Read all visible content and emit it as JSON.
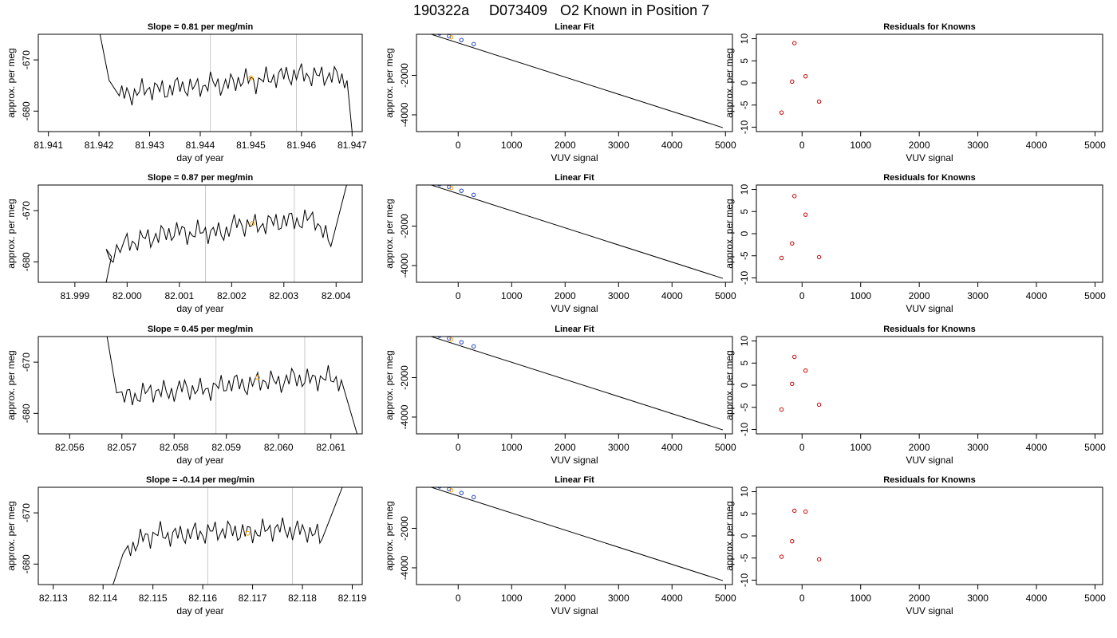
{
  "title": {
    "run": "190322a",
    "id": "D073409",
    "label": "O2 Known in Position  7"
  },
  "colors": {
    "trace": "#000000",
    "marker_highlight": "#ffa500",
    "residual_points": "#cc0000",
    "fit_points": "#1f3fbf",
    "cycle_lines": "#c8c8c8"
  },
  "chart_data": [
    {
      "type": "line",
      "row": 0,
      "title": "Slope =  0.81  per meg/min",
      "xlabel": "day of year",
      "ylabel": "approx. per meg",
      "xlim": [
        81.9408,
        81.9472
      ],
      "ylim": [
        -684,
        -665
      ],
      "xticks": [
        "81.941",
        "81.942",
        "81.943",
        "81.944",
        "81.945",
        "81.946",
        "81.947"
      ],
      "xtick_values": [
        81.941,
        81.942,
        81.943,
        81.944,
        81.945,
        81.946,
        81.947
      ],
      "yticks": [
        "-670",
        "-680"
      ],
      "ytick_values": [
        -670,
        -680
      ],
      "cycle_markers": [
        81.9442,
        81.9459
      ],
      "highlight_point": {
        "x": 81.945,
        "y": -673.5
      },
      "trace_x": [
        81.9424,
        81.9427,
        81.943,
        81.9433,
        81.9436,
        81.9439,
        81.9442,
        81.9445,
        81.9448,
        81.9451,
        81.9454,
        81.9457,
        81.946,
        81.9463,
        81.9466,
        81.9469
      ],
      "trace_y": [
        -677,
        -676.5,
        -675.5,
        -676,
        -675,
        -675.5,
        -674.5,
        -675,
        -673.8,
        -674.2,
        -673.5,
        -673,
        -672.8,
        -673.2,
        -673,
        -674
      ],
      "trace_start": {
        "x": 81.942,
        "y": -664,
        "end_x": 81.9422,
        "end_y": -674
      },
      "trace_end": {
        "x": 81.947,
        "y": -684
      }
    },
    {
      "type": "line",
      "row": 1,
      "title": "Slope =  0.87  per meg/min",
      "xlabel": "day of year",
      "ylabel": "approx. per meg",
      "xlim": [
        81.9983,
        82.0045
      ],
      "ylim": [
        -684,
        -665
      ],
      "xticks": [
        "81.999",
        "82.000",
        "82.001",
        "82.002",
        "82.003",
        "82.004"
      ],
      "xtick_values": [
        81.999,
        82.0,
        82.001,
        82.002,
        82.003,
        82.004
      ],
      "yticks": [
        "-670",
        "-680"
      ],
      "ytick_values": [
        -670,
        -680
      ],
      "cycle_markers": [
        82.0015,
        82.0032
      ],
      "highlight_point": {
        "x": 82.0024,
        "y": -672.5
      },
      "trace_x": [
        81.9996,
        82.0,
        82.0003,
        82.0006,
        82.0009,
        82.0012,
        82.0015,
        82.0018,
        82.0021,
        82.0024,
        82.0027,
        82.003,
        82.0033,
        82.0036,
        82.0039
      ],
      "trace_y": [
        -679,
        -676.5,
        -675.5,
        -675,
        -674,
        -674.5,
        -674,
        -674.5,
        -672.5,
        -673,
        -672.5,
        -672,
        -672,
        -671.5,
        -677
      ],
      "trace_start": {
        "x": 81.9996,
        "y": -684,
        "end_x": 81.9997,
        "end_y": -679
      },
      "trace_end": {
        "x": 82.0042,
        "y": -665
      }
    },
    {
      "type": "line",
      "row": 2,
      "title": "Slope =  0.45  per meg/min",
      "xlabel": "day of year",
      "ylabel": "approx. per meg",
      "xlim": [
        82.0554,
        82.0616
      ],
      "ylim": [
        -684,
        -665
      ],
      "xticks": [
        "82.056",
        "82.057",
        "82.058",
        "82.059",
        "82.060",
        "82.061"
      ],
      "xtick_values": [
        82.056,
        82.057,
        82.058,
        82.059,
        82.06,
        82.061
      ],
      "yticks": [
        "-670",
        "-680"
      ],
      "ytick_values": [
        -670,
        -680
      ],
      "cycle_markers": [
        82.0588,
        82.0605
      ],
      "highlight_point": {
        "x": 82.0596,
        "y": -673
      },
      "trace_x": [
        82.057,
        82.0573,
        82.0576,
        82.0579,
        82.0582,
        82.0585,
        82.0588,
        82.0591,
        82.0594,
        82.0597,
        82.06,
        82.0603,
        82.0606,
        82.0609,
        82.0612
      ],
      "trace_y": [
        -677,
        -676.5,
        -675.5,
        -676,
        -675,
        -675.5,
        -675,
        -674,
        -674.5,
        -673.5,
        -674,
        -673,
        -673.5,
        -673,
        -673.5
      ],
      "trace_start": {
        "x": 82.0567,
        "y": -664,
        "end_x": 82.0569,
        "end_y": -676
      },
      "trace_end": {
        "x": 82.0615,
        "y": -684
      }
    },
    {
      "type": "line",
      "row": 3,
      "title": "Slope =  -0.14  per meg/min",
      "xlabel": "day of year",
      "ylabel": "approx. per meg",
      "xlim": [
        82.1127,
        82.1192
      ],
      "ylim": [
        -684,
        -665
      ],
      "xticks": [
        "82.113",
        "82.114",
        "82.115",
        "82.116",
        "82.117",
        "82.118",
        "82.119"
      ],
      "xtick_values": [
        82.113,
        82.114,
        82.115,
        82.116,
        82.117,
        82.118,
        82.119
      ],
      "yticks": [
        "-670",
        "-680"
      ],
      "ytick_values": [
        -670,
        -680
      ],
      "cycle_markers": [
        82.1161,
        82.1178
      ],
      "highlight_point": {
        "x": 82.1169,
        "y": -674
      },
      "trace_x": [
        82.1145,
        82.1148,
        82.1151,
        82.1154,
        82.1157,
        82.116,
        82.1163,
        82.1166,
        82.1169,
        82.1172,
        82.1175,
        82.1178,
        82.1181,
        82.1184
      ],
      "trace_y": [
        -677,
        -675,
        -674,
        -674.5,
        -674,
        -674,
        -673.5,
        -673.5,
        -674,
        -673.5,
        -673,
        -673.5,
        -673.5,
        -675
      ],
      "trace_start": {
        "x": 82.1142,
        "y": -684,
        "end_x": 82.1144,
        "end_y": -678
      },
      "trace_end": {
        "x": 82.1188,
        "y": -665
      }
    },
    {
      "type": "scatter",
      "row": 0,
      "title": "Linear Fit",
      "xlabel": "VUV signal",
      "ylabel": "approx. per meg",
      "xlim": [
        -780,
        5130
      ],
      "ylim": [
        -4850,
        80
      ],
      "xticks": [
        "0",
        "1000",
        "2000",
        "3000",
        "4000",
        "5000"
      ],
      "xtick_values": [
        0,
        1000,
        2000,
        3000,
        4000,
        5000
      ],
      "yticks": [
        "-2000",
        "-4000"
      ],
      "ytick_values": [
        -2000,
        -4000
      ],
      "fit_line": {
        "x": [
          -700,
          4950
        ],
        "y": [
          250,
          -4650
        ]
      },
      "points_x": [
        -350,
        -170,
        -130,
        60,
        290
      ],
      "points_y": [
        120,
        -20,
        -70,
        -210,
        -420
      ],
      "highlight_index": 2
    },
    {
      "type": "scatter",
      "row": 1,
      "title": "Linear Fit",
      "xlabel": "VUV signal",
      "ylabel": "approx. per meg",
      "xlim": [
        -780,
        5130
      ],
      "ylim": [
        -4850,
        80
      ],
      "xticks": [
        "0",
        "1000",
        "2000",
        "3000",
        "4000",
        "5000"
      ],
      "xtick_values": [
        0,
        1000,
        2000,
        3000,
        4000,
        5000
      ],
      "yticks": [
        "-2000",
        "-4000"
      ],
      "ytick_values": [
        -2000,
        -4000
      ],
      "fit_line": {
        "x": [
          -700,
          4950
        ],
        "y": [
          250,
          -4650
        ]
      },
      "points_x": [
        -350,
        -170,
        -130,
        60,
        290
      ],
      "points_y": [
        120,
        -20,
        -70,
        -210,
        -420
      ],
      "highlight_index": 2
    },
    {
      "type": "scatter",
      "row": 2,
      "title": "Linear Fit",
      "xlabel": "VUV signal",
      "ylabel": "approx. per meg",
      "xlim": [
        -780,
        5130
      ],
      "ylim": [
        -4850,
        80
      ],
      "xticks": [
        "0",
        "1000",
        "2000",
        "3000",
        "4000",
        "5000"
      ],
      "xtick_values": [
        0,
        1000,
        2000,
        3000,
        4000,
        5000
      ],
      "yticks": [
        "-2000",
        "-4000"
      ],
      "ytick_values": [
        -2000,
        -4000
      ],
      "fit_line": {
        "x": [
          -700,
          4950
        ],
        "y": [
          250,
          -4650
        ]
      },
      "points_x": [
        -350,
        -170,
        -130,
        60,
        290
      ],
      "points_y": [
        120,
        -20,
        -70,
        -210,
        -420
      ],
      "highlight_index": 2
    },
    {
      "type": "scatter",
      "row": 3,
      "title": "Linear Fit",
      "xlabel": "VUV signal",
      "ylabel": "approx. per meg",
      "xlim": [
        -780,
        5130
      ],
      "ylim": [
        -4850,
        80
      ],
      "xticks": [
        "0",
        "1000",
        "2000",
        "3000",
        "4000",
        "5000"
      ],
      "xtick_values": [
        0,
        1000,
        2000,
        3000,
        4000,
        5000
      ],
      "yticks": [
        "-2000",
        "-4000"
      ],
      "ytick_values": [
        -2000,
        -4000
      ],
      "fit_line": {
        "x": [
          -700,
          4950
        ],
        "y": [
          250,
          -4650
        ]
      },
      "points_x": [
        -350,
        -170,
        -130,
        60,
        290
      ],
      "points_y": [
        120,
        -20,
        -70,
        -210,
        -420
      ],
      "highlight_index": 2
    },
    {
      "type": "scatter",
      "row": 0,
      "title": "Residuals for Knowns",
      "xlabel": "VUV signal",
      "ylabel": "approx. per meg",
      "xlim": [
        -780,
        5130
      ],
      "ylim": [
        -11,
        11
      ],
      "xticks": [
        "0",
        "1000",
        "2000",
        "3000",
        "4000",
        "5000"
      ],
      "xtick_values": [
        0,
        1000,
        2000,
        3000,
        4000,
        5000
      ],
      "yticks": [
        "10",
        "5",
        "0",
        "-5",
        "-10"
      ],
      "ytick_values": [
        10,
        5,
        0,
        -5,
        -10
      ],
      "points_x": [
        -350,
        -170,
        -130,
        60,
        290
      ],
      "points_y": [
        -6.7,
        0.3,
        9.0,
        1.5,
        -4.2
      ]
    },
    {
      "type": "scatter",
      "row": 1,
      "title": "Residuals for Knowns",
      "xlabel": "VUV signal",
      "ylabel": "approx. per meg",
      "xlim": [
        -780,
        5130
      ],
      "ylim": [
        -11,
        11
      ],
      "xticks": [
        "0",
        "1000",
        "2000",
        "3000",
        "4000",
        "5000"
      ],
      "xtick_values": [
        0,
        1000,
        2000,
        3000,
        4000,
        5000
      ],
      "yticks": [
        "10",
        "5",
        "0",
        "-5",
        "-10"
      ],
      "ytick_values": [
        10,
        5,
        0,
        -5,
        -10
      ],
      "points_x": [
        -350,
        -170,
        -130,
        60,
        290
      ],
      "points_y": [
        -5.5,
        -2.2,
        8.5,
        4.3,
        -5.3
      ]
    },
    {
      "type": "scatter",
      "row": 2,
      "title": "Residuals for Knowns",
      "xlabel": "VUV signal",
      "ylabel": "approx. per meg",
      "xlim": [
        -780,
        5130
      ],
      "ylim": [
        -11,
        11
      ],
      "xticks": [
        "0",
        "1000",
        "2000",
        "3000",
        "4000",
        "5000"
      ],
      "xtick_values": [
        0,
        1000,
        2000,
        3000,
        4000,
        5000
      ],
      "yticks": [
        "10",
        "5",
        "0",
        "-5",
        "-10"
      ],
      "ytick_values": [
        10,
        5,
        0,
        -5,
        -10
      ],
      "points_x": [
        -350,
        -170,
        -130,
        60,
        290
      ],
      "points_y": [
        -5.5,
        0.3,
        6.4,
        3.3,
        -4.4
      ]
    },
    {
      "type": "scatter",
      "row": 3,
      "title": "Residuals for Knowns",
      "xlabel": "VUV signal",
      "ylabel": "approx. per meg",
      "xlim": [
        -780,
        5130
      ],
      "ylim": [
        -11,
        11
      ],
      "xticks": [
        "0",
        "1000",
        "2000",
        "3000",
        "4000",
        "5000"
      ],
      "xtick_values": [
        0,
        1000,
        2000,
        3000,
        4000,
        5000
      ],
      "yticks": [
        "10",
        "5",
        "0",
        "-5",
        "-10"
      ],
      "ytick_values": [
        10,
        5,
        0,
        -5,
        -10
      ],
      "points_x": [
        -350,
        -170,
        -130,
        60,
        290
      ],
      "points_y": [
        -4.7,
        -1.2,
        5.7,
        5.5,
        -5.3
      ]
    }
  ]
}
